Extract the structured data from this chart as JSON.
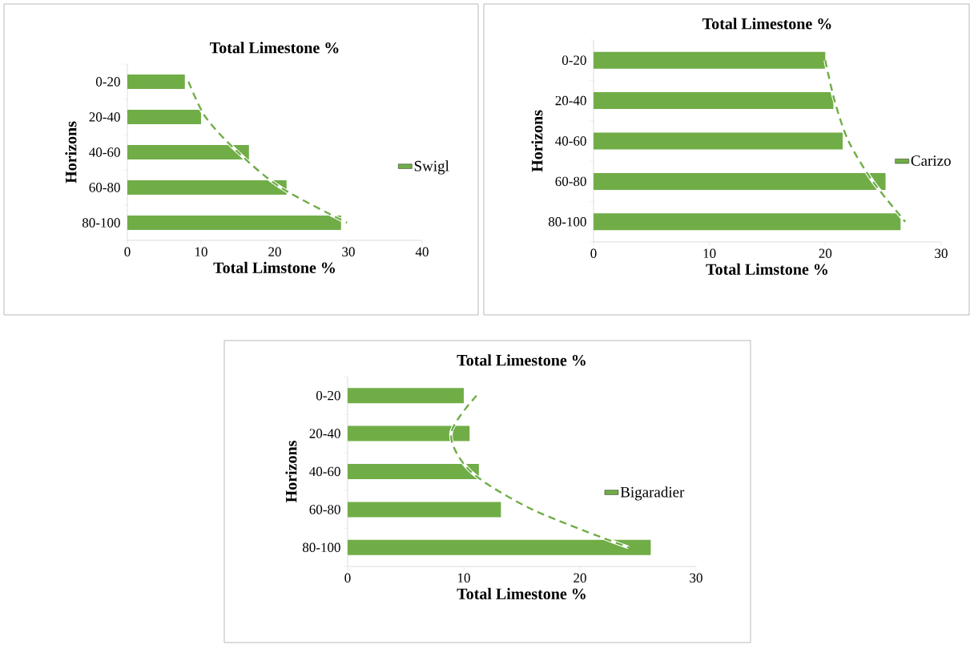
{
  "chart_data": [
    {
      "type": "bar",
      "orientation": "horizontal",
      "title": "Total Limestone %",
      "xlabel": "Total Limstone %",
      "ylabel": "Horizons",
      "categories": [
        "0-20",
        "20-40",
        "40-60",
        "60-80",
        "80-100"
      ],
      "xlim": [
        0,
        40
      ],
      "xticks": [
        0,
        10,
        20,
        30,
        40
      ],
      "legend": "right",
      "series": [
        {
          "name": "Swigl",
          "color": "#70ad47",
          "values": [
            7.8,
            10.0,
            16.5,
            21.6,
            29.0
          ]
        },
        {
          "type": "line",
          "color": "#70ad47",
          "line_style": "dashed",
          "values": [
            8.3,
            10.6,
            15.0,
            20.8,
            29.8
          ]
        }
      ]
    },
    {
      "type": "bar",
      "orientation": "horizontal",
      "title": "Total  Limestone %",
      "xlabel": "Total Limstone %",
      "ylabel": "Horizons",
      "categories": [
        "0-20",
        "20-40",
        "40-60",
        "60-80",
        "80-100"
      ],
      "xlim": [
        0,
        30
      ],
      "xticks": [
        0,
        10,
        20,
        30
      ],
      "legend": "right",
      "series": [
        {
          "name": "Carizo",
          "color": "#70ad47",
          "values": [
            20.0,
            20.7,
            21.5,
            25.2,
            26.5
          ]
        },
        {
          "type": "line",
          "color": "#70ad47",
          "line_style": "dashed",
          "values": [
            20.0,
            20.8,
            22.0,
            24.1,
            26.9
          ]
        }
      ]
    },
    {
      "type": "bar",
      "orientation": "horizontal",
      "title": "Total Limestone %",
      "xlabel": "Total Limestone %",
      "ylabel": "Horizons",
      "categories": [
        "0-20",
        "20-40",
        "40-60",
        "60-80",
        "80-100"
      ],
      "xlim": [
        0,
        30
      ],
      "xticks": [
        0,
        10,
        20,
        30
      ],
      "legend": "right",
      "series": [
        {
          "name": "Bigaradier",
          "color": "#70ad47",
          "values": [
            10.0,
            10.5,
            11.3,
            13.2,
            26.1
          ]
        },
        {
          "type": "line",
          "color": "#70ad47",
          "line_style": "dashed",
          "values": [
            11.1,
            8.9,
            10.6,
            15.9,
            24.2
          ]
        }
      ]
    }
  ]
}
